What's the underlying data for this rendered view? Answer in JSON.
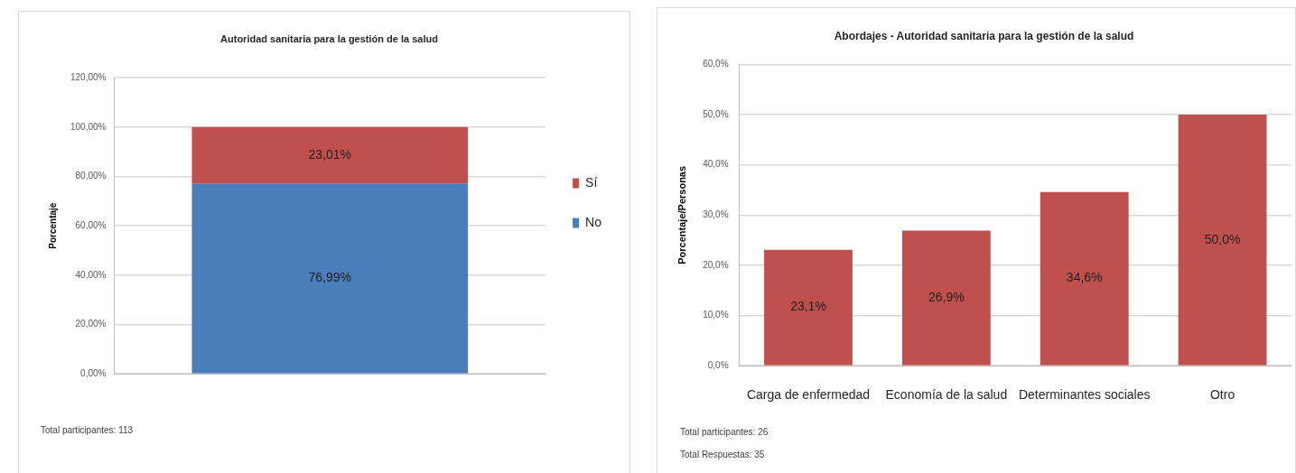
{
  "chart_data": [
    {
      "type": "bar",
      "title": "Autoridad sanitaria para la gestión de la salud",
      "ylabel": "Porcentaje",
      "categories": [
        null
      ],
      "stacked": true,
      "series": [
        {
          "name": "No",
          "color": "#4a7ebb",
          "values": [
            76.99
          ],
          "value_labels": [
            "76,99%"
          ]
        },
        {
          "name": "Sí",
          "color": "#c0504d",
          "values": [
            23.01
          ],
          "value_labels": [
            "23,01%"
          ]
        }
      ],
      "ylim": [
        0,
        120
      ],
      "yticks": [
        {
          "value": 0,
          "label": "0,00%"
        },
        {
          "value": 20,
          "label": "20,00%"
        },
        {
          "value": 40,
          "label": "40,00%"
        },
        {
          "value": 60,
          "label": "60,00%"
        },
        {
          "value": 80,
          "label": "80,00%"
        },
        {
          "value": 100,
          "label": "100,00%"
        },
        {
          "value": 120,
          "label": "120,00%"
        }
      ],
      "grid": "y",
      "legend": "right",
      "annotations": [
        "Total participantes: 113"
      ]
    },
    {
      "type": "bar",
      "title": "Abordajes - Autoridad sanitaria para la gestión de la salud",
      "ylabel": "Porcentaje/Personas",
      "categories": [
        "Carga de enfermedad",
        "Economía de la salud",
        "Determinantes sociales",
        "Otro"
      ],
      "series": [
        {
          "color": "#c0504d",
          "values": [
            23.1,
            26.9,
            34.6,
            50.0
          ],
          "value_labels": [
            "23,1%",
            "26,9%",
            "34,6%",
            "50,0%"
          ]
        }
      ],
      "ylim": [
        0,
        60
      ],
      "yticks": [
        {
          "value": 0,
          "label": "0,0%"
        },
        {
          "value": 10,
          "label": "10,0%"
        },
        {
          "value": 20,
          "label": "20,0%"
        },
        {
          "value": 30,
          "label": "30,0%"
        },
        {
          "value": 40,
          "label": "40,0%"
        },
        {
          "value": 50,
          "label": "50,0%"
        },
        {
          "value": 60,
          "label": "60,0%"
        }
      ],
      "grid": "y",
      "annotations": [
        "Total participantes: 26",
        "Total Respuestas: 35"
      ]
    }
  ]
}
